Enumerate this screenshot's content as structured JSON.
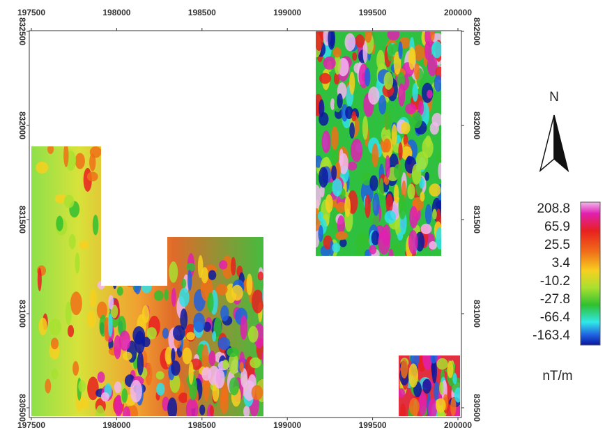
{
  "map": {
    "x_ticks": [
      "197500",
      "198000",
      "198500",
      "199000",
      "199500",
      "200000"
    ],
    "y_ticks": [
      "832500",
      "832000",
      "831500",
      "831000",
      "830500"
    ],
    "north_label": "N",
    "legend": {
      "labels": [
        "208.8",
        "65.9",
        "25.5",
        "3.4",
        "-10.2",
        "-27.8",
        "-66.4",
        "-163.4"
      ],
      "unit": "nT/m"
    }
  }
}
